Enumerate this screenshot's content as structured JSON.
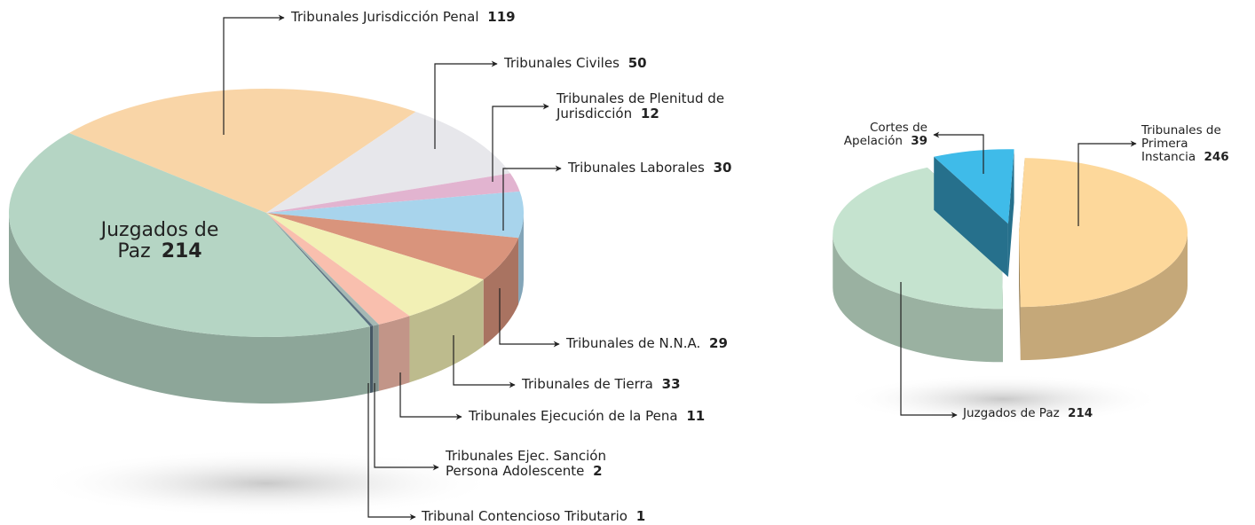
{
  "chart_data": [
    {
      "type": "pie",
      "categories": [
        "Tribunales Jurisdicción Penal",
        "Tribunales Civiles",
        "Tribunales de Plenitud de Jurisdicción",
        "Tribunales Laborales",
        "Tribunales de N.N.A.",
        "Tribunales de Tierra",
        "Tribunales Ejecución de la Pena",
        "Tribunales Ejec. Sanción Persona Adolescente",
        "Tribunal Contencioso Tributario",
        "Juzgados de Paz"
      ],
      "values": [
        119,
        50,
        12,
        30,
        29,
        33,
        11,
        2,
        1,
        214
      ],
      "colors": [
        "#f9d5a7",
        "#e7e7eb",
        "#e2b4d0",
        "#a8d4ec",
        "#d9947c",
        "#f2f0b5",
        "#f9bfae",
        "#a4b8b4",
        "#5a7080",
        "#b5d5c4"
      ]
    },
    {
      "type": "pie",
      "categories": [
        "Tribunales de Primera Instancia",
        "Juzgados de Paz",
        "Cortes de Apelación"
      ],
      "values": [
        246,
        214,
        39
      ],
      "colors": [
        "#fdd89b",
        "#c5e3cf",
        "#3fbbe9"
      ]
    }
  ]
}
